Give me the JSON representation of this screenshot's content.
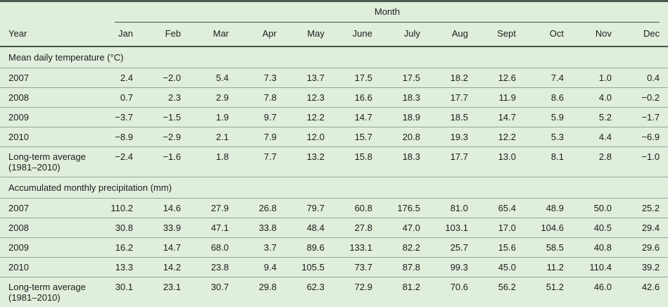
{
  "table": {
    "month_group_label": "Month",
    "year_column_label": "Year",
    "month_columns": [
      "Jan",
      "Feb",
      "Mar",
      "Apr",
      "May",
      "June",
      "July",
      "Aug",
      "Sept",
      "Oct",
      "Nov",
      "Dec"
    ],
    "sections": [
      {
        "title": "Mean daily temperature (°C)",
        "rows": [
          {
            "label": "2007",
            "values": [
              "2.4",
              "−2.0",
              "5.4",
              "7.3",
              "13.7",
              "17.5",
              "17.5",
              "18.2",
              "12.6",
              "7.4",
              "1.0",
              "0.4"
            ]
          },
          {
            "label": "2008",
            "values": [
              "0.7",
              "2.3",
              "2.9",
              "7.8",
              "12.3",
              "16.6",
              "18.3",
              "17.7",
              "11.9",
              "8.6",
              "4.0",
              "−0.2"
            ]
          },
          {
            "label": "2009",
            "values": [
              "−3.7",
              "−1.5",
              "1.9",
              "9.7",
              "12.2",
              "14.7",
              "18.9",
              "18.5",
              "14.7",
              "5.9",
              "5.2",
              "−1.7"
            ]
          },
          {
            "label": "2010",
            "values": [
              "−8.9",
              "−2.9",
              "2.1",
              "7.9",
              "12.0",
              "15.7",
              "20.8",
              "19.3",
              "12.2",
              "5.3",
              "4.4",
              "−6.9"
            ]
          },
          {
            "label": "Long-term average",
            "label_line2": "(1981–2010)",
            "values": [
              "−2.4",
              "−1.6",
              "1.8",
              "7.7",
              "13.2",
              "15.8",
              "18.3",
              "17.7",
              "13.0",
              "8.1",
              "2.8",
              "−1.0"
            ]
          }
        ]
      },
      {
        "title": "Accumulated monthly precipitation (mm)",
        "rows": [
          {
            "label": "2007",
            "values": [
              "110.2",
              "14.6",
              "27.9",
              "26.8",
              "79.7",
              "60.8",
              "176.5",
              "81.0",
              "65.4",
              "48.9",
              "50.0",
              "25.2"
            ]
          },
          {
            "label": "2008",
            "values": [
              "30.8",
              "33.9",
              "47.1",
              "33.8",
              "48.4",
              "27.8",
              "47.0",
              "103.1",
              "17.0",
              "104.6",
              "40.5",
              "29.4"
            ]
          },
          {
            "label": "2009",
            "values": [
              "16.2",
              "14.7",
              "68.0",
              "3.7",
              "89.6",
              "133.1",
              "82.2",
              "25.7",
              "15.6",
              "58.5",
              "40.8",
              "29.6"
            ]
          },
          {
            "label": "2010",
            "values": [
              "13.3",
              "14.2",
              "23.8",
              "9.4",
              "105.5",
              "73.7",
              "87.8",
              "99.3",
              "45.0",
              "11.2",
              "110.4",
              "39.2"
            ]
          },
          {
            "label": "Long-term average",
            "label_line2": "(1981–2010)",
            "values": [
              "30.1",
              "23.1",
              "30.7",
              "29.8",
              "62.3",
              "72.9",
              "81.2",
              "70.6",
              "56.2",
              "51.2",
              "46.0",
              "42.6"
            ]
          }
        ]
      }
    ],
    "colors": {
      "table_background": "#e0efdc",
      "top_rule": "#4d5b51",
      "header_rule": "#454f47",
      "row_rule": "#97a397",
      "bottom_rule": "#20251f",
      "text": "#1c1c1c"
    }
  }
}
